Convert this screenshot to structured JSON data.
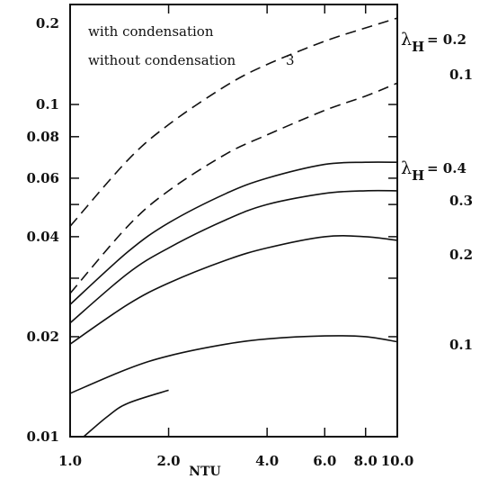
{
  "chart_data": {
    "type": "line",
    "xlabel": "NTU",
    "ylabel": "",
    "x_scale": "log",
    "y_scale": "log",
    "xlim": [
      1.0,
      10.0
    ],
    "ylim": [
      0.01,
      0.2
    ],
    "grid": false,
    "x_ticks": [
      {
        "value": 1.0,
        "label": "1.0"
      },
      {
        "value": 2.0,
        "label": "2.0"
      },
      {
        "value": 4.0,
        "label": "4.0"
      },
      {
        "value": 6.0,
        "label": "6.0"
      },
      {
        "value": 8.0,
        "label": "8.0"
      },
      {
        "value": 10.0,
        "label": "10.0"
      }
    ],
    "y_ticks": [
      {
        "value": 0.01,
        "label": "0.01"
      },
      {
        "value": 0.02,
        "label": "0.02"
      },
      {
        "value": 0.03,
        "label": ""
      },
      {
        "value": 0.04,
        "label": "0.04"
      },
      {
        "value": 0.05,
        "label": ""
      },
      {
        "value": 0.06,
        "label": "0.06"
      },
      {
        "value": 0.08,
        "label": "0.08"
      },
      {
        "value": 0.1,
        "label": "0.1"
      },
      {
        "value": 0.2,
        "label": "0.2"
      }
    ],
    "legend": {
      "position": "top-left",
      "entries": [
        "with condensation",
        "without condensation"
      ],
      "note": "3"
    },
    "group_labels": [
      {
        "lambda": "λ",
        "subscript": "H",
        "value": "= 0.2",
        "group": "dashed"
      },
      {
        "lambda": "λ",
        "subscript": "H",
        "value": "= 0.4",
        "group": "solid"
      }
    ],
    "series": [
      {
        "label": "0.2",
        "style": "dashed",
        "x": [
          1.0,
          1.5,
          2.0,
          3.0,
          4.0,
          6.0,
          8.0,
          10.0
        ],
        "y": [
          0.043,
          0.068,
          0.087,
          0.114,
          0.132,
          0.155,
          0.17,
          0.182
        ]
      },
      {
        "label": "0.1",
        "style": "dashed",
        "x": [
          1.0,
          1.5,
          2.0,
          3.0,
          4.0,
          6.0,
          8.0,
          10.0
        ],
        "y": [
          0.027,
          0.043,
          0.055,
          0.071,
          0.081,
          0.096,
          0.106,
          0.116
        ]
      },
      {
        "label": "0.4",
        "style": "solid",
        "x": [
          1.0,
          1.5,
          2.0,
          3.0,
          4.0,
          6.0,
          8.0,
          10.0
        ],
        "y": [
          0.025,
          0.036,
          0.044,
          0.054,
          0.06,
          0.066,
          0.067,
          0.067
        ]
      },
      {
        "label": "0.3",
        "style": "solid",
        "x": [
          1.0,
          1.5,
          2.0,
          3.0,
          4.0,
          6.0,
          8.0,
          10.0
        ],
        "y": [
          0.022,
          0.031,
          0.037,
          0.045,
          0.05,
          0.054,
          0.055,
          0.055
        ]
      },
      {
        "label": "0.2",
        "style": "solid",
        "x": [
          1.0,
          1.5,
          2.0,
          3.0,
          4.0,
          6.0,
          8.0,
          10.0
        ],
        "y": [
          0.019,
          0.025,
          0.029,
          0.034,
          0.037,
          0.04,
          0.04,
          0.039
        ]
      },
      {
        "label": "0.1",
        "style": "solid",
        "x": [
          1.0,
          1.5,
          2.0,
          3.0,
          4.0,
          6.0,
          8.0,
          10.0
        ],
        "y": [
          0.0135,
          0.016,
          0.0175,
          0.019,
          0.0197,
          0.0201,
          0.02,
          0.0193
        ]
      },
      {
        "label": "",
        "style": "solid",
        "x": [
          1.1,
          1.3,
          1.5,
          2.0
        ],
        "y": [
          0.01,
          0.0115,
          0.0126,
          0.0138
        ]
      }
    ]
  }
}
